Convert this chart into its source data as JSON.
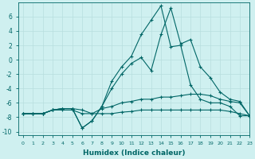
{
  "xlabel": "Humidex (Indice chaleur)",
  "xlim": [
    -0.5,
    23
  ],
  "ylim": [
    -10.5,
    8
  ],
  "yticks": [
    -10,
    -8,
    -6,
    -4,
    -2,
    0,
    2,
    4,
    6
  ],
  "xticks": [
    0,
    1,
    2,
    3,
    4,
    5,
    6,
    7,
    8,
    9,
    10,
    11,
    12,
    13,
    14,
    15,
    16,
    17,
    18,
    19,
    20,
    21,
    22,
    23
  ],
  "bg_color": "#cff0f0",
  "grid_color": "#b8dede",
  "line_color": "#006666",
  "series": [
    {
      "x": [
        0,
        1,
        2,
        3,
        4,
        5,
        6,
        7,
        8,
        9,
        10,
        11,
        12,
        13,
        14,
        15,
        16,
        17,
        18,
        19,
        20,
        21,
        22,
        23
      ],
      "y": [
        -7.5,
        -7.5,
        -7.5,
        -7.0,
        -7.0,
        -7.0,
        -7.5,
        -7.5,
        -7.5,
        -7.5,
        -7.3,
        -7.2,
        -7.0,
        -7.0,
        -7.0,
        -7.0,
        -7.0,
        -7.0,
        -7.0,
        -7.0,
        -7.0,
        -7.2,
        -7.5,
        -7.8
      ]
    },
    {
      "x": [
        0,
        1,
        2,
        3,
        4,
        5,
        6,
        7,
        8,
        9,
        10,
        11,
        12,
        13,
        14,
        15,
        16,
        17,
        18,
        19,
        20,
        21,
        22,
        23
      ],
      "y": [
        -7.5,
        -7.5,
        -7.5,
        -7.0,
        -6.8,
        -6.8,
        -7.0,
        -7.5,
        -6.8,
        -6.5,
        -6.0,
        -5.8,
        -5.5,
        -5.5,
        -5.2,
        -5.2,
        -5.0,
        -4.8,
        -4.8,
        -5.0,
        -5.5,
        -5.8,
        -6.0,
        -7.8
      ]
    },
    {
      "x": [
        0,
        1,
        2,
        3,
        4,
        5,
        6,
        7,
        8,
        9,
        10,
        11,
        12,
        13,
        14,
        15,
        16,
        17,
        18,
        19,
        20,
        21,
        22,
        23
      ],
      "y": [
        -7.5,
        -7.5,
        -7.5,
        -7.0,
        -6.8,
        -6.8,
        -9.5,
        -8.5,
        -6.5,
        -4.0,
        -2.0,
        -0.5,
        0.3,
        -1.5,
        3.5,
        7.2,
        2.2,
        2.8,
        -1.0,
        -2.5,
        -4.5,
        -5.5,
        -5.8,
        -7.8
      ]
    },
    {
      "x": [
        0,
        1,
        2,
        3,
        4,
        5,
        6,
        7,
        8,
        9,
        10,
        11,
        12,
        13,
        14,
        15,
        16,
        17,
        18,
        19,
        20,
        21,
        22,
        23
      ],
      "y": [
        -7.5,
        -7.5,
        -7.5,
        -7.0,
        -6.8,
        -6.8,
        -9.5,
        -8.5,
        -6.5,
        -3.0,
        -1.0,
        0.5,
        3.5,
        5.5,
        7.5,
        1.8,
        2.0,
        -3.5,
        -5.5,
        -6.0,
        -6.0,
        -6.5,
        -7.8,
        -7.8
      ]
    }
  ]
}
